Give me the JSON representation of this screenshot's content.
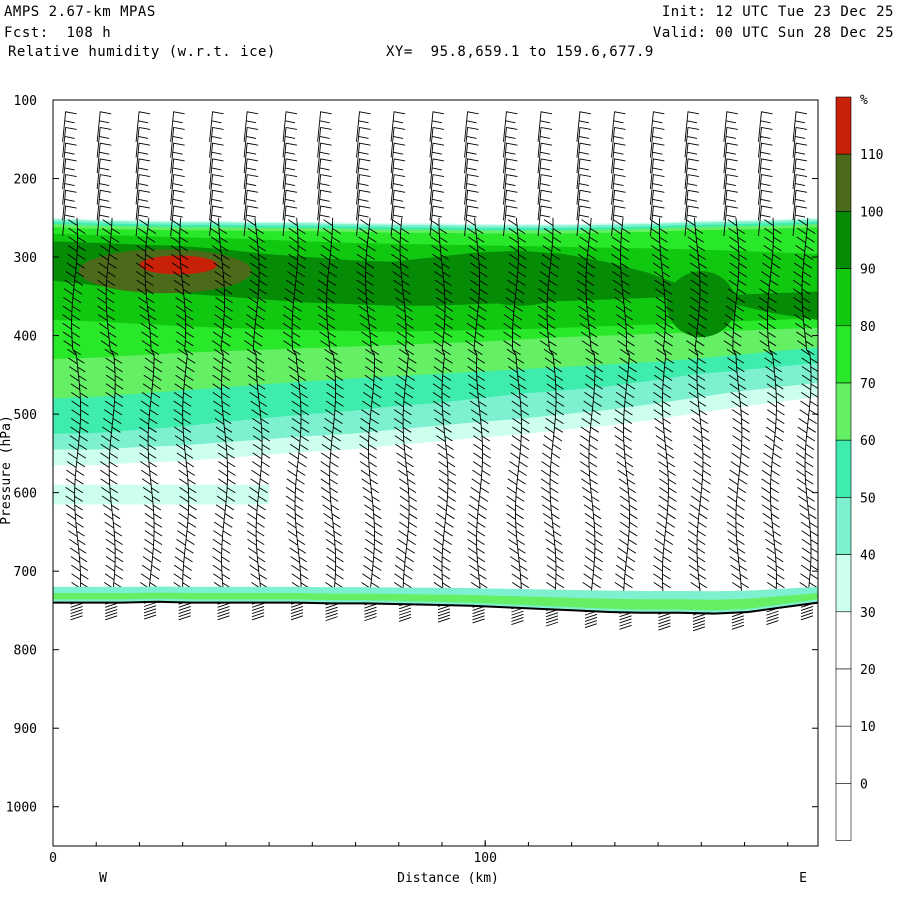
{
  "header": {
    "model": "AMPS 2.67-km MPAS",
    "forecast": "Fcst:  108 h",
    "field": "Relative humidity (w.r.t. ice)",
    "xy": "XY=  95.8,659.1 to 159.6,677.9",
    "init": "Init: 12 UTC Tue 23 Dec 25",
    "valid": "Valid: 00 UTC Sun 28 Dec 25"
  },
  "colors": {
    "levels": [
      "#ffffff",
      "#ffffff",
      "#ffffff",
      "#ffffff",
      "#ccffee",
      "#7df0cf",
      "#3eedae",
      "#65ef65",
      "#29e829",
      "#11c811",
      "#068b06",
      "#4b6b1a",
      "#c82107"
    ]
  },
  "chart_data": {
    "type": "heatmap",
    "title": "Relative humidity (w.r.t. ice)",
    "xlabel": "Distance (km)",
    "ylabel": "Pressure (hPa)",
    "x_ticks": [
      "0",
      "100"
    ],
    "x_range": [
      0,
      177
    ],
    "y_range": [
      100,
      1050
    ],
    "y_ticks": [
      "100",
      "200",
      "300",
      "400",
      "500",
      "600",
      "700",
      "800",
      "900",
      "1000"
    ],
    "direction_labels": {
      "left": "W",
      "right": "E"
    },
    "colorbar": {
      "unit": "%",
      "tick_labels": [
        "110",
        "100",
        "90",
        "80",
        "70",
        "60",
        "50",
        "40",
        "30",
        "20",
        "10",
        "0"
      ]
    },
    "bands": [
      {
        "label": "30-40",
        "top": [
          250,
          252,
          253,
          254,
          254,
          255,
          255,
          256,
          257,
          257,
          258,
          258,
          258,
          257,
          256,
          254,
          253,
          252,
          250
        ],
        "bottom": [
          565,
          565,
          562,
          560,
          556,
          552,
          548,
          545,
          540,
          535,
          530,
          526,
          520,
          515,
          508,
          500,
          492,
          485,
          478
        ]
      },
      {
        "label": "40-50",
        "top": [
          252,
          254,
          255,
          256,
          256,
          257,
          257,
          258,
          259,
          259,
          260,
          260,
          260,
          259,
          258,
          256,
          255,
          254,
          252
        ],
        "bottom": [
          545,
          545,
          542,
          540,
          536,
          532,
          528,
          525,
          520,
          515,
          510,
          506,
          500,
          495,
          488,
          480,
          472,
          466,
          460
        ]
      },
      {
        "label": "50-60",
        "top": [
          255,
          257,
          258,
          259,
          259,
          260,
          260,
          261,
          262,
          262,
          263,
          263,
          263,
          262,
          261,
          259,
          258,
          257,
          255
        ],
        "bottom": [
          525,
          524,
          520,
          516,
          510,
          505,
          500,
          496,
          490,
          486,
          480,
          474,
          470,
          465,
          458,
          450,
          445,
          440,
          435
        ]
      },
      {
        "label": "60-70",
        "top": [
          258,
          260,
          261,
          262,
          262,
          263,
          263,
          264,
          265,
          265,
          266,
          266,
          266,
          265,
          264,
          262,
          261,
          260,
          258
        ],
        "bottom": [
          480,
          478,
          474,
          470,
          466,
          462,
          458,
          455,
          452,
          449,
          446,
          443,
          440,
          437,
          434,
          430,
          425,
          420,
          415
        ]
      },
      {
        "label": "70-80",
        "top": [
          262,
          264,
          265,
          266,
          266,
          267,
          267,
          268,
          269,
          269,
          270,
          270,
          270,
          269,
          268,
          266,
          265,
          264,
          262
        ],
        "bottom": [
          430,
          428,
          425,
          422,
          420,
          418,
          416,
          414,
          412,
          410,
          408,
          405,
          402,
          400,
          398,
          396,
          394,
          392,
          390
        ]
      },
      {
        "label": "80-90",
        "top": [
          270,
          272,
          273,
          275,
          276,
          278,
          280,
          282,
          283,
          284,
          285,
          286,
          287,
          288,
          289,
          290,
          292,
          294,
          296
        ],
        "bottom": [
          380,
          382,
          385,
          388,
          390,
          392,
          393,
          394,
          395,
          394,
          393,
          392,
          390,
          388,
          386,
          384,
          382,
          380,
          378
        ]
      },
      {
        "label": "90-100",
        "top": [
          280,
          282,
          284,
          286,
          290,
          296,
          300,
          304,
          306,
          300,
          294,
          292,
          296,
          306,
          320,
          340,
          360,
          372,
          380
        ],
        "bottom": [
          330,
          336,
          342,
          346,
          350,
          354,
          358,
          360,
          362,
          362,
          360,
          358,
          356,
          354,
          352,
          350,
          348,
          346,
          344
        ]
      }
    ],
    "patches": [
      {
        "label": "100-110",
        "kind": "ellipse",
        "x_km": 26,
        "p_hPa": 318,
        "dx_km": 20,
        "dp_hPa": 28
      },
      {
        "label": "90-100",
        "kind": "ellipse",
        "x_km": 108,
        "p_hPa": 330,
        "dx_km": 12,
        "dp_hPa": 32
      },
      {
        "label": "90-100",
        "kind": "ellipse",
        "x_km": 150,
        "p_hPa": 360,
        "dx_km": 8,
        "dp_hPa": 42
      },
      {
        "label": ">110",
        "kind": "ellipse",
        "x_km": 29,
        "p_hPa": 310,
        "dx_km": 9,
        "dp_hPa": 12
      }
    ],
    "low_band": {
      "label": "30-50",
      "top_hPa": 590,
      "bottom_hPa": 615,
      "x_range_km": [
        0,
        50
      ]
    },
    "surface_band": {
      "label": "40-80",
      "top_hPa": 720,
      "x_range_km": [
        0,
        177
      ]
    },
    "surface_pressure_hPa": [
      740,
      740,
      740,
      739,
      740,
      740,
      740,
      740,
      741,
      741,
      742,
      743,
      744,
      746,
      748,
      750,
      752,
      753,
      753,
      754,
      752,
      746,
      740
    ],
    "wind_profile_x_km": [
      5,
      13,
      22,
      30,
      39,
      47,
      56,
      64,
      73,
      81,
      90,
      98,
      107,
      115,
      124,
      132,
      141,
      149,
      158,
      166,
      174
    ]
  }
}
